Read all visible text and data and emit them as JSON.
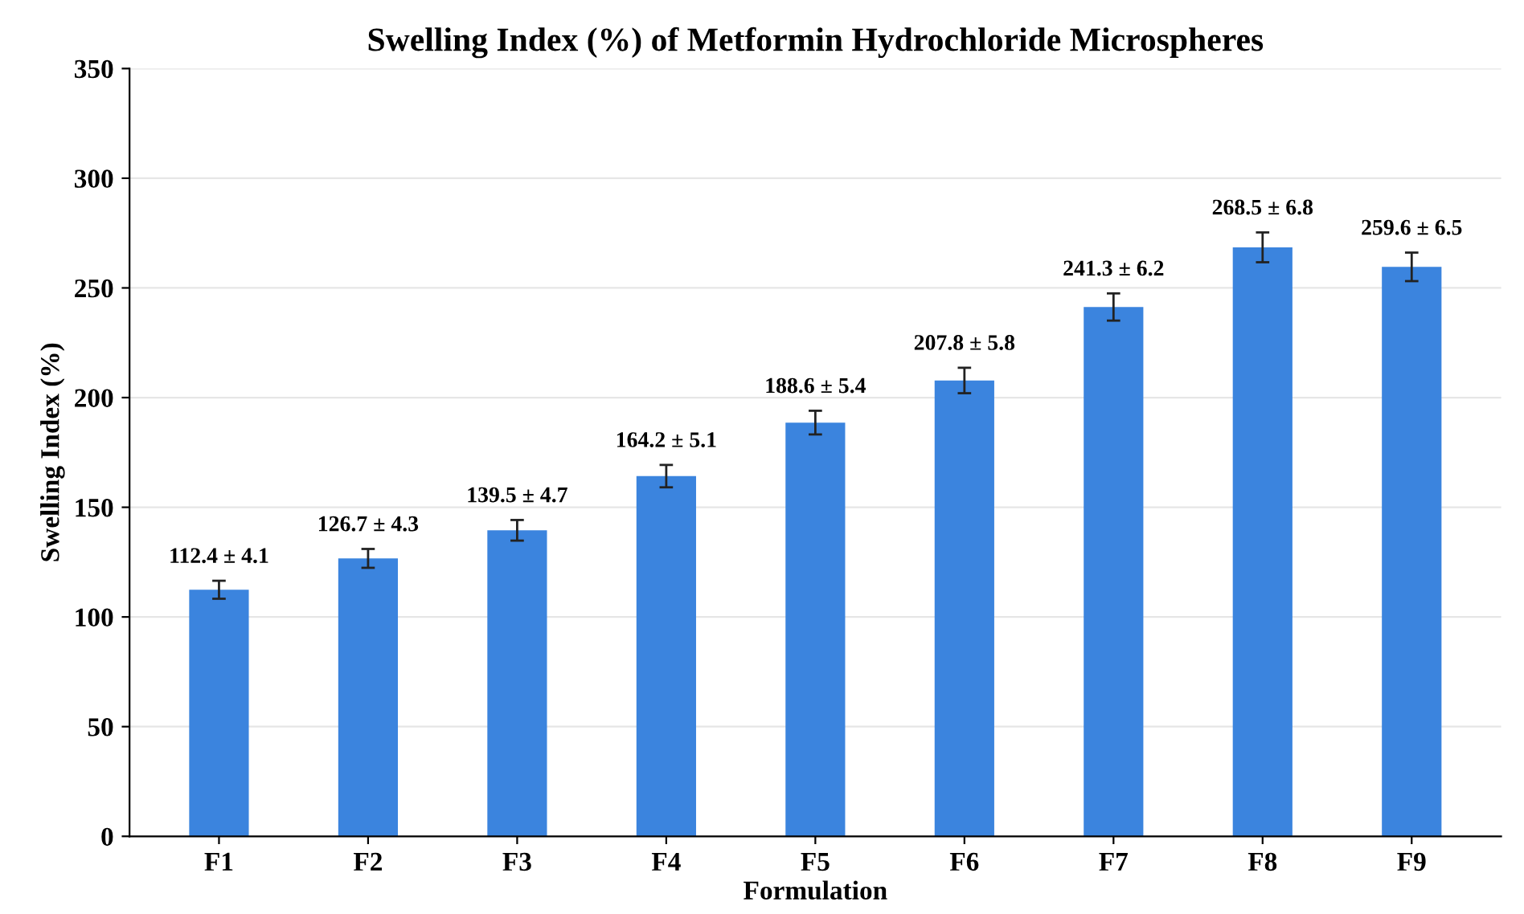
{
  "chart_data": {
    "type": "bar",
    "title": "Swelling Index (%) of Metformin Hydrochloride Microspheres",
    "xlabel": "Formulation",
    "ylabel": "Swelling Index (%)",
    "categories": [
      "F1",
      "F2",
      "F3",
      "F4",
      "F5",
      "F6",
      "F7",
      "F8",
      "F9"
    ],
    "values": [
      112.4,
      126.7,
      139.5,
      164.2,
      188.6,
      207.8,
      241.3,
      268.5,
      259.6
    ],
    "errors": [
      4.1,
      4.3,
      4.7,
      5.1,
      5.4,
      5.8,
      6.2,
      6.8,
      6.5
    ],
    "value_labels": [
      "112.4 ± 4.1",
      "126.7 ± 4.3",
      "139.5 ± 4.7",
      "164.2 ± 5.1",
      "188.6 ± 5.4",
      "207.8 ± 5.8",
      "241.3 ± 6.2",
      "268.5 ± 6.8",
      "259.6 ± 6.5"
    ],
    "color": "#3b84de",
    "ylim": [
      0,
      350
    ],
    "yticks": [
      0,
      50,
      100,
      150,
      200,
      250,
      300,
      350
    ],
    "grid": "y"
  }
}
